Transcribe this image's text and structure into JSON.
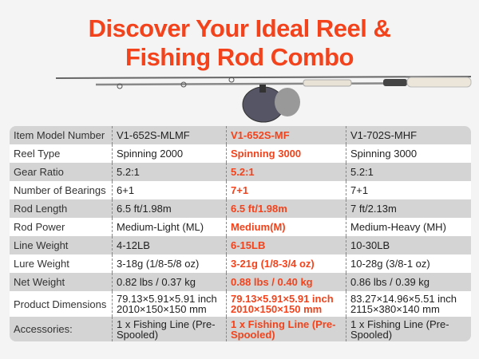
{
  "title": {
    "line1": "Discover Your Ideal Reel &",
    "line2": "Fishing Rod Combo"
  },
  "accent_color": "#f2431d",
  "table": {
    "rows": [
      {
        "label": "Item Model Number",
        "c1": "V1-652S-MLMF",
        "c2": "V1-652S-MF",
        "c3": "V1-702S-MHF"
      },
      {
        "label": "Reel Type",
        "c1": "Spinning 2000",
        "c2": "Spinning 3000",
        "c3": "Spinning 3000"
      },
      {
        "label": "Gear Ratio",
        "c1": "5.2:1",
        "c2": "5.2:1",
        "c3": "5.2:1"
      },
      {
        "label": "Number of Bearings",
        "c1": "6+1",
        "c2": "7+1",
        "c3": "7+1"
      },
      {
        "label": "Rod Length",
        "c1": "6.5 ft/1.98m",
        "c2": "6.5 ft/1.98m",
        "c3": "7 ft/2.13m"
      },
      {
        "label": "Rod Power",
        "c1": "Medium-Light (ML)",
        "c2": "Medium(M)",
        "c3": "Medium-Heavy (MH)"
      },
      {
        "label": "Line Weight",
        "c1": "4-12LB",
        "c2": "6-15LB",
        "c3": "10-30LB"
      },
      {
        "label": "Lure Weight",
        "c1": "3-18g (1/8-5/8 oz)",
        "c2": "3-21g (1/8-3/4 oz)",
        "c3": "10-28g (3/8-1 oz)"
      },
      {
        "label": "Net Weight",
        "c1": "0.82 lbs / 0.37 kg",
        "c2": "0.88 lbs / 0.40 kg",
        "c3": "0.86 lbs / 0.39 kg"
      },
      {
        "label": "Product Dimensions",
        "c1": "79.13×5.91×5.91 inch 2010×150×150 mm",
        "c2": "79.13×5.91×5.91 inch 2010×150×150 mm",
        "c3": "83.27×14.96×5.51 inch 2115×380×140 mm"
      },
      {
        "label": "Accessories:",
        "c1": "1 x Fishing Line (Pre-Spooled)",
        "c2": "1 x Fishing Line (Pre-Spooled)",
        "c3": "1 x Fishing Line (Pre-Spooled)"
      }
    ]
  }
}
